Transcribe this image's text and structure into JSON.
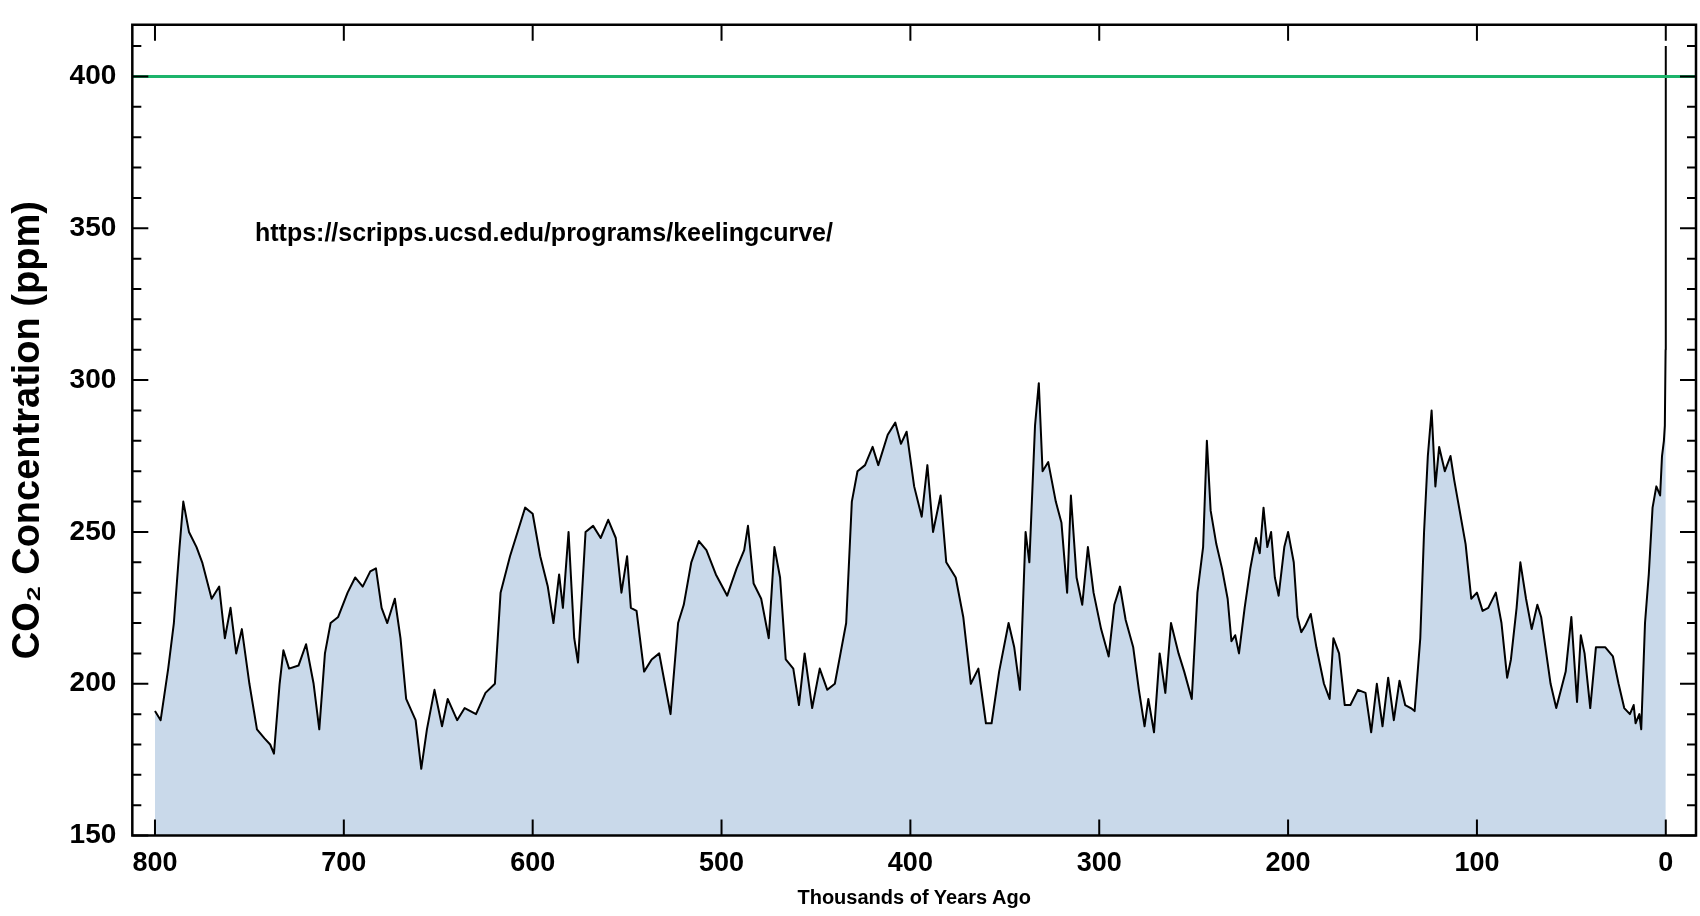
{
  "chart_data": {
    "type": "area",
    "xlabel": "Thousands of Years Ago",
    "ylabel": "CO₂ Concentration (ppm)",
    "annotations": [
      "https://scripps.ucsd.edu/programs/keelingcurve/"
    ],
    "xlim": [
      812,
      -16
    ],
    "xticks": [
      800,
      700,
      600,
      500,
      400,
      300,
      200,
      100,
      0
    ],
    "ylim": [
      150,
      417
    ],
    "yticks": [
      150,
      {
        "value": 160,
        "label": null
      },
      {
        "value": 170,
        "label": null
      },
      {
        "value": 180,
        "label": null
      },
      {
        "value": 190,
        "label": null
      },
      200,
      {
        "value": 210,
        "label": null
      },
      {
        "value": 220,
        "label": null
      },
      {
        "value": 230,
        "label": null
      },
      {
        "value": 240,
        "label": null
      },
      250,
      {
        "value": 260,
        "label": null
      },
      {
        "value": 270,
        "label": null
      },
      {
        "value": 280,
        "label": null
      },
      {
        "value": 290,
        "label": null
      },
      300,
      {
        "value": 310,
        "label": null
      },
      {
        "value": 320,
        "label": null
      },
      {
        "value": 330,
        "label": null
      },
      {
        "value": 340,
        "label": null
      },
      350,
      {
        "value": 360,
        "label": null
      },
      {
        "value": 370,
        "label": null
      },
      {
        "value": 380,
        "label": null
      },
      {
        "value": 390,
        "label": null
      },
      400,
      {
        "value": 410,
        "label": null
      }
    ],
    "grid": false,
    "legend": false,
    "marker": "none",
    "line_style": "solid",
    "ref_lines": [
      {
        "axis": "y",
        "value": 400,
        "color": "#1db46b"
      }
    ],
    "series": [
      {
        "color": "#c9d9ea",
        "x": [
          800,
          797,
          793,
          790,
          787,
          785,
          782,
          778,
          775,
          770,
          766,
          763,
          760,
          757,
          754,
          750,
          746,
          742,
          739,
          737,
          734,
          732,
          729,
          724,
          720,
          716,
          713,
          710,
          707,
          703,
          698,
          694,
          690,
          686,
          683,
          680,
          677,
          673,
          670,
          667,
          662,
          659,
          656,
          652,
          648,
          645,
          640,
          636,
          630,
          625,
          620,
          617,
          612,
          608,
          604,
          600,
          596,
          592,
          589,
          586,
          584,
          581,
          578,
          576,
          572,
          568,
          564,
          560,
          556,
          553,
          550,
          548,
          545,
          541,
          537,
          533,
          530,
          527,
          523,
          520,
          516,
          512,
          508,
          503,
          497,
          492,
          488,
          486,
          483,
          479,
          475,
          472,
          469,
          466,
          462,
          459,
          456,
          452,
          448,
          444,
          440,
          437,
          434,
          431,
          428,
          424,
          420,
          417,
          412,
          408,
          405,
          402,
          398,
          394,
          391,
          388,
          384,
          381,
          376,
          372,
          368,
          364,
          360,
          357,
          353,
          348,
          345,
          342,
          339,
          337,
          334,
          332,
          330,
          327,
          323,
          320,
          317,
          315,
          312,
          309,
          306,
          303,
          299,
          295,
          292,
          289,
          286,
          282,
          279,
          276,
          274,
          271,
          268,
          265,
          262,
          258,
          255,
          251,
          248,
          245,
          243,
          241,
          238,
          235,
          232,
          230,
          228,
          226,
          223,
          220,
          217,
          215,
          213,
          211,
          209,
          207,
          205,
          202,
          200,
          197,
          195,
          193,
          191,
          188,
          185,
          181,
          178,
          176,
          173,
          170,
          167,
          163,
          159,
          156,
          153,
          150,
          147,
          144,
          141,
          138,
          135,
          133,
          130,
          128,
          126,
          124,
          122,
          120,
          117,
          114,
          112,
          110,
          106,
          103,
          100,
          97,
          94,
          90,
          87,
          84,
          82,
          79,
          77,
          74,
          71,
          68,
          66,
          61,
          58,
          53,
          50,
          47,
          45,
          43,
          40,
          37,
          32,
          28,
          25,
          22,
          19,
          17,
          16,
          14,
          13,
          11,
          9,
          7,
          5,
          3,
          2,
          1,
          0.5,
          0.1,
          0
        ],
        "values": [
          191,
          188,
          205,
          220,
          245,
          260,
          250,
          245,
          240,
          228,
          232,
          215,
          225,
          210,
          218,
          200,
          185,
          182,
          180,
          177,
          200,
          211,
          205,
          206,
          213,
          200,
          185,
          210,
          220,
          222,
          230,
          235,
          232,
          237,
          238,
          225,
          220,
          228,
          215,
          195,
          188,
          172,
          185,
          198,
          186,
          195,
          188,
          192,
          190,
          197,
          200,
          230,
          242,
          250,
          258,
          256,
          242,
          232,
          220,
          236,
          225,
          250,
          215,
          207,
          250,
          252,
          248,
          254,
          248,
          230,
          242,
          225,
          224,
          204,
          208,
          210,
          200,
          190,
          220,
          226,
          240,
          247,
          244,
          236,
          229,
          238,
          244,
          252,
          233,
          228,
          215,
          245,
          235,
          208,
          205,
          193,
          210,
          192,
          205,
          198,
          200,
          210,
          220,
          260,
          270,
          272,
          278,
          272,
          282,
          286,
          279,
          283,
          265,
          255,
          272,
          250,
          262,
          240,
          235,
          222,
          200,
          205,
          187,
          187,
          204,
          220,
          212,
          198,
          250,
          240,
          285,
          299,
          270,
          273,
          260,
          253,
          230,
          262,
          235,
          226,
          245,
          230,
          218,
          209,
          226,
          232,
          221,
          212,
          198,
          186,
          195,
          184,
          210,
          197,
          220,
          210,
          204,
          195,
          230,
          245,
          280,
          257,
          246,
          238,
          228,
          214,
          216,
          210,
          225,
          238,
          248,
          243,
          258,
          245,
          250,
          235,
          229,
          245,
          250,
          240,
          222,
          217,
          219,
          223,
          212,
          200,
          195,
          215,
          210,
          193,
          193,
          198,
          197,
          184,
          200,
          186,
          202,
          188,
          201,
          193,
          192,
          191,
          215,
          250,
          275,
          290,
          265,
          278,
          270,
          275,
          267,
          260,
          246,
          228,
          230,
          224,
          225,
          230,
          220,
          202,
          208,
          225,
          240,
          228,
          218,
          226,
          222,
          200,
          192,
          204,
          222,
          194,
          216,
          210,
          192,
          212,
          212,
          209,
          200,
          192,
          190,
          193,
          187,
          190,
          185,
          220,
          236,
          258,
          265,
          262,
          275,
          280,
          285,
          310,
          410
        ]
      }
    ]
  }
}
